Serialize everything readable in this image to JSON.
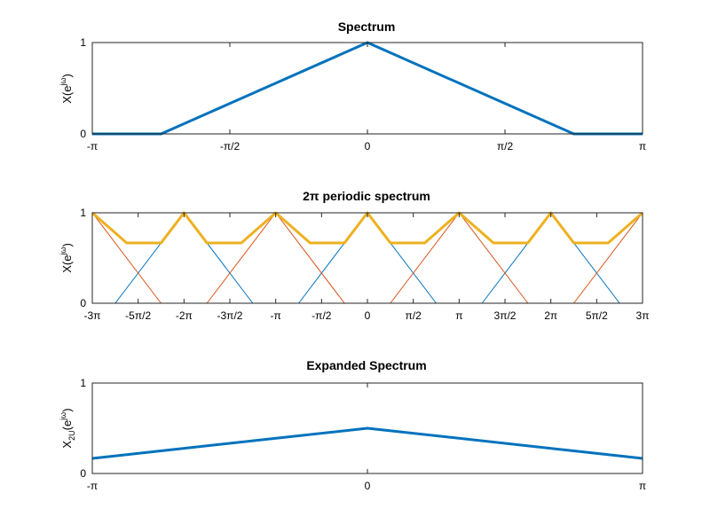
{
  "colors": {
    "blue": "#0072BD",
    "orange": "#D95319",
    "yellow": "#EDB120",
    "axis": "#262626"
  },
  "chart_data": [
    {
      "type": "line",
      "title": "Spectrum",
      "ylabel": {
        "base": "X(e",
        "sup": "jω",
        "close": ")"
      },
      "xlim": [
        -3.14159265,
        3.14159265
      ],
      "ylim": [
        0,
        1
      ],
      "xticks": [
        {
          "value": -3.14159265,
          "label": "-π"
        },
        {
          "value": -1.5707963,
          "label": "-π/2"
        },
        {
          "value": 0,
          "label": "0"
        },
        {
          "value": 1.5707963,
          "label": "π/2"
        },
        {
          "value": 3.14159265,
          "label": "π"
        }
      ],
      "yticks": [
        {
          "value": 0,
          "label": "0"
        },
        {
          "value": 1,
          "label": "1"
        }
      ],
      "series": [
        {
          "color": "blue",
          "width": 3,
          "x": [
            -3.14159265,
            -2.3561945,
            0,
            2.3561945,
            3.14159265
          ],
          "y": [
            0,
            0,
            1,
            0,
            0
          ]
        }
      ]
    },
    {
      "type": "line",
      "title": "2π periodic spectrum",
      "ylabel": {
        "base": "X(e",
        "sup": "jω",
        "close": ")"
      },
      "xlim": [
        -9.42477796,
        9.42477796
      ],
      "ylim": [
        0,
        1
      ],
      "xticks": [
        {
          "value": -9.42477796,
          "label": "-3π"
        },
        {
          "value": -7.85398163,
          "label": "-5π/2"
        },
        {
          "value": -6.28318531,
          "label": "-2π"
        },
        {
          "value": -4.71238898,
          "label": "-3π/2"
        },
        {
          "value": -3.14159265,
          "label": "-π"
        },
        {
          "value": -1.57079633,
          "label": "-π/2"
        },
        {
          "value": 0,
          "label": "0"
        },
        {
          "value": 1.57079633,
          "label": "π/2"
        },
        {
          "value": 3.14159265,
          "label": "π"
        },
        {
          "value": 4.71238898,
          "label": "3π/2"
        },
        {
          "value": 6.28318531,
          "label": "2π"
        },
        {
          "value": 7.85398163,
          "label": "5π/2"
        },
        {
          "value": 9.42477796,
          "label": "3π"
        }
      ],
      "yticks": [
        {
          "value": 0,
          "label": "0"
        },
        {
          "value": 1,
          "label": "1"
        }
      ],
      "series": [
        {
          "color": "blue",
          "width": 1,
          "x": [
            -9.42477796,
            -8.6393798,
            -6.28318531,
            -3.92699082,
            -2.35619449,
            0,
            2.35619449,
            3.92699082,
            6.28318531,
            8.6393798,
            9.42477796
          ],
          "y": [
            0.0,
            0.0,
            1.0,
            0.0,
            0.0,
            1.0,
            0.0,
            0.0,
            1.0,
            0.0,
            0.0
          ]
        },
        {
          "color": "orange",
          "width": 1,
          "x": [
            -9.42477796,
            -7.06858347,
            -5.49778714,
            -3.14159265,
            -0.78539816,
            0.78539816,
            3.14159265,
            5.49778714,
            7.06858347,
            9.42477796
          ],
          "y": [
            1.0,
            0.0,
            0.0,
            1.0,
            0.0,
            0.0,
            1.0,
            0.0,
            0.0,
            1.0
          ]
        },
        {
          "color": "yellow",
          "width": 3,
          "x": [
            -9.42477796,
            -8.24668072,
            -7.06858347,
            -6.28318531,
            -5.49778714,
            -4.3196899,
            -3.14159265,
            -1.96349541,
            -0.78539816,
            0,
            0.78539816,
            1.96349541,
            3.14159265,
            4.3196899,
            5.49778714,
            6.28318531,
            7.06858347,
            8.24668072,
            9.42477796
          ],
          "y": [
            1.0,
            0.667,
            0.667,
            1.0,
            0.667,
            0.667,
            1.0,
            0.667,
            0.667,
            1.0,
            0.667,
            0.667,
            1.0,
            0.667,
            0.667,
            1.0,
            0.667,
            0.667,
            1.0
          ]
        }
      ]
    },
    {
      "type": "line",
      "title": "Expanded Spectrum",
      "ylabel": {
        "base": "X",
        "sub": "2U",
        "open": "(e",
        "sup": "jω",
        "close": ")"
      },
      "xlim": [
        -3.14159265,
        3.14159265
      ],
      "ylim": [
        0,
        1
      ],
      "xticks": [
        {
          "value": -3.14159265,
          "label": "-π"
        },
        {
          "value": 0,
          "label": "0"
        },
        {
          "value": 3.14159265,
          "label": "π"
        }
      ],
      "yticks": [
        {
          "value": 0,
          "label": "0"
        },
        {
          "value": 1,
          "label": "1"
        }
      ],
      "series": [
        {
          "color": "blue",
          "width": 3,
          "x": [
            -3.14159265,
            0,
            3.14159265
          ],
          "y": [
            0.167,
            0.5,
            0.167
          ]
        }
      ]
    }
  ]
}
